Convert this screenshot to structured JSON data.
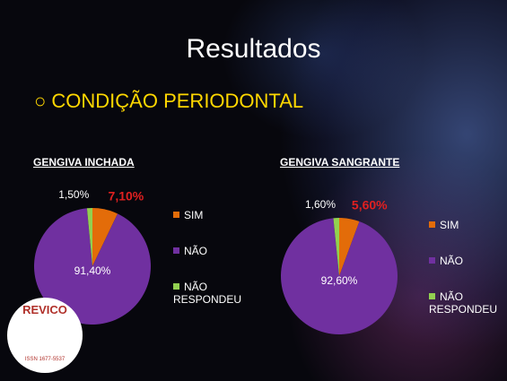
{
  "slide": {
    "title": "Resultados",
    "heading": "CONDIÇÃO PERIODONTAL"
  },
  "logo": {
    "name": "REVICO",
    "issn": "ISSN 1677-5537"
  },
  "chart_data": [
    {
      "type": "pie",
      "title": "GENGIVA INCHADA",
      "categories": [
        "SIM",
        "NÃO",
        "NÃO RESPONDEU"
      ],
      "values": [
        7.1,
        91.4,
        1.5
      ],
      "value_labels": [
        "7,10%",
        "91,40%",
        "1,50%"
      ],
      "colors": [
        "#e36c09",
        "#7030a0",
        "#92d050"
      ]
    },
    {
      "type": "pie",
      "title": "GENGIVA SANGRANTE",
      "categories": [
        "SIM",
        "NÃO",
        "NÃO RESPONDEU"
      ],
      "values": [
        5.6,
        92.6,
        1.6
      ],
      "value_labels": [
        "5,60%",
        "92,60%",
        "1,60%"
      ],
      "colors": [
        "#e36c09",
        "#7030a0",
        "#92d050"
      ]
    }
  ]
}
